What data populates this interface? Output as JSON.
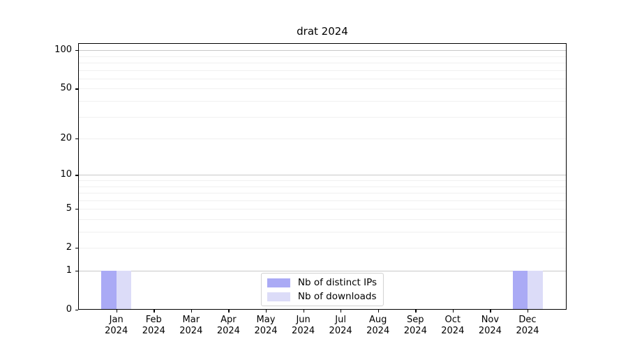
{
  "chart_data": {
    "type": "bar",
    "title": "drat 2024",
    "categories": [
      "Jan",
      "Feb",
      "Mar",
      "Apr",
      "May",
      "Jun",
      "Jul",
      "Aug",
      "Sep",
      "Oct",
      "Nov",
      "Dec"
    ],
    "year_label": "2024",
    "series": [
      {
        "name": "Nb of distinct IPs",
        "color": "#aaaaf5",
        "values": [
          1,
          0,
          0,
          0,
          0,
          0,
          0,
          0,
          0,
          0,
          0,
          1
        ]
      },
      {
        "name": "Nb of downloads",
        "color": "#dcdcf8",
        "values": [
          1,
          0,
          0,
          0,
          0,
          0,
          0,
          0,
          0,
          0,
          0,
          1
        ]
      }
    ],
    "xlabel": "",
    "ylabel": "",
    "yscale": "log1p",
    "ylim": [
      0,
      113.5
    ],
    "y_ticks": [
      0,
      1,
      2,
      5,
      10,
      20,
      50,
      100
    ],
    "y_major_gridlines": [
      1,
      10,
      100
    ],
    "legend_position": "bottom-center",
    "grid": true
  },
  "colors": {
    "background": "#ffffff",
    "axis": "#000000",
    "major_grid": "#c8c8c8",
    "minor_grid": "#f0f0f0",
    "legend_border": "#d0d0d0"
  }
}
